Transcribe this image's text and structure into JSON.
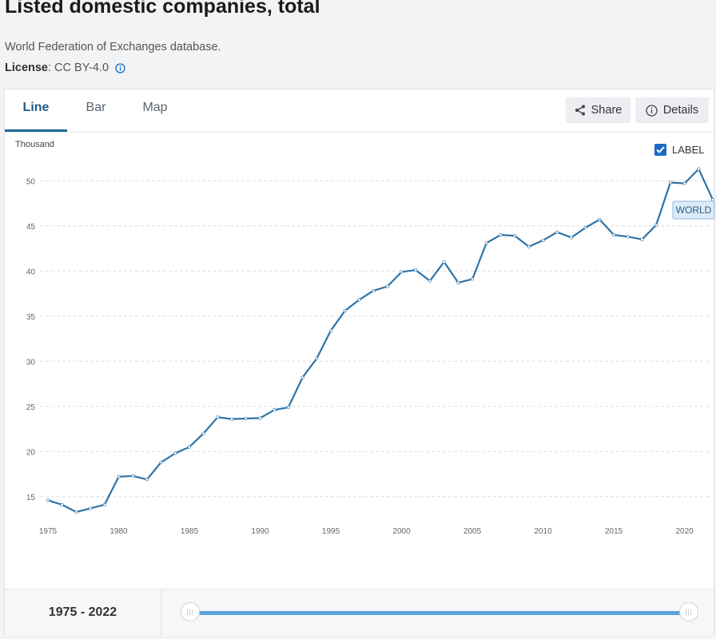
{
  "header": {
    "title": "Listed domestic companies, total",
    "source": "World Federation of Exchanges database.",
    "license_label": "License",
    "license_value": " : CC BY-4.0"
  },
  "tabs": [
    {
      "label": "Line",
      "active": true
    },
    {
      "label": "Bar",
      "active": false
    },
    {
      "label": "Map",
      "active": false
    }
  ],
  "actions": {
    "share": "Share",
    "details": "Details"
  },
  "label_toggle": {
    "text": "LABEL",
    "checked": true
  },
  "range": {
    "text": "1975 - 2022",
    "start": 1975,
    "end": 2022
  },
  "colors": {
    "line": "#2e74a6",
    "accent": "#1f5f8b",
    "slider": "#5ba4d9"
  },
  "icons": [
    "info-icon",
    "share-icon",
    "info-circle-icon",
    "checkmark-icon",
    "slider-handle-icon"
  ],
  "chart_data": {
    "type": "line",
    "ylabel": "Thousand",
    "xlabel": "",
    "xlim": [
      1975,
      2022
    ],
    "ylim": [
      12.5,
      52.5
    ],
    "yticks": [
      15,
      20,
      25,
      30,
      35,
      40,
      45,
      50
    ],
    "xticks": [
      1975,
      1980,
      1985,
      1990,
      1995,
      2000,
      2005,
      2010,
      2015,
      2020
    ],
    "grid": true,
    "series": [
      {
        "name": "WORLD",
        "x": [
          1975,
          1976,
          1977,
          1978,
          1979,
          1980,
          1981,
          1982,
          1983,
          1984,
          1985,
          1986,
          1987,
          1988,
          1989,
          1990,
          1991,
          1992,
          1993,
          1994,
          1995,
          1996,
          1997,
          1998,
          1999,
          2000,
          2001,
          2002,
          2003,
          2004,
          2005,
          2006,
          2007,
          2008,
          2009,
          2010,
          2011,
          2012,
          2013,
          2014,
          2015,
          2016,
          2017,
          2018,
          2019,
          2020,
          2021,
          2022
        ],
        "values": [
          14.6,
          14.1,
          13.3,
          13.7,
          14.1,
          17.2,
          17.3,
          16.9,
          18.8,
          19.8,
          20.5,
          22.0,
          23.8,
          23.6,
          23.65,
          23.7,
          24.6,
          24.9,
          28.2,
          30.3,
          33.4,
          35.6,
          36.8,
          37.8,
          38.3,
          39.9,
          40.1,
          38.9,
          41.0,
          38.7,
          39.1,
          43.1,
          44.0,
          43.9,
          42.7,
          43.4,
          44.3,
          43.7,
          44.8,
          45.7,
          44.0,
          43.8,
          43.5,
          45.1,
          49.8,
          49.7,
          51.3,
          47.9
        ]
      }
    ]
  }
}
